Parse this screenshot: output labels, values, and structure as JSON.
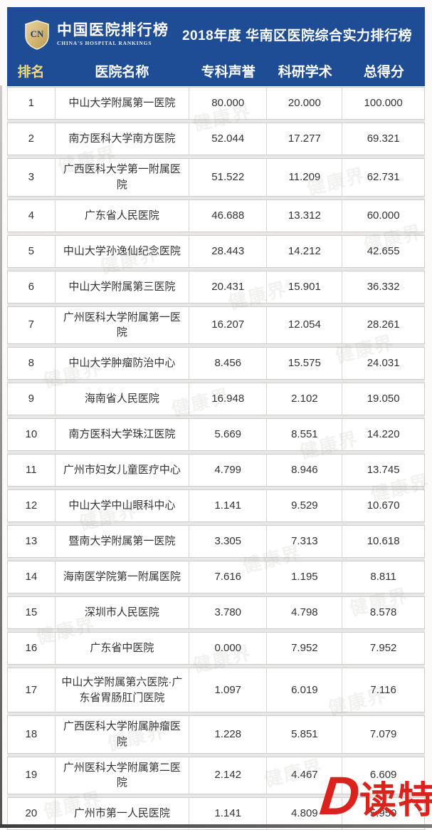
{
  "colors": {
    "banner_blue": "#1e4c95",
    "rank_header_gold": "#eeda7f",
    "dute_red": "#d9231c",
    "shield_gold": "#d4b878"
  },
  "header": {
    "logo": {
      "badge": "CN",
      "title": "中国医院排行榜",
      "subtitle": "CHINA'S HOSPITAL RANKINGS"
    },
    "title": "2018年度 华南区医院综合实力排行榜"
  },
  "chart_data": {
    "type": "table",
    "title": "2018年度 华南区医院综合实力排行榜",
    "columns": [
      "排名",
      "医院名称",
      "专科声誉",
      "科研学术",
      "总得分"
    ],
    "rows": [
      [
        "1",
        "中山大学附属第一医院",
        "80.000",
        "20.000",
        "100.000"
      ],
      [
        "2",
        "南方医科大学南方医院",
        "52.044",
        "17.277",
        "69.321"
      ],
      [
        "3",
        "广西医科大学第一附属医院",
        "51.522",
        "11.209",
        "62.731"
      ],
      [
        "4",
        "广东省人民医院",
        "46.688",
        "13.312",
        "60.000"
      ],
      [
        "5",
        "中山大学孙逸仙纪念医院",
        "28.443",
        "14.212",
        "42.655"
      ],
      [
        "6",
        "中山大学附属第三医院",
        "20.431",
        "15.901",
        "36.332"
      ],
      [
        "7",
        "广州医科大学附属第一医院",
        "16.207",
        "12.054",
        "28.261"
      ],
      [
        "8",
        "中山大学肿瘤防治中心",
        "8.456",
        "15.575",
        "24.031"
      ],
      [
        "9",
        "海南省人民医院",
        "16.948",
        "2.102",
        "19.050"
      ],
      [
        "10",
        "南方医科大学珠江医院",
        "5.669",
        "8.551",
        "14.220"
      ],
      [
        "11",
        "广州市妇女儿童医疗中心",
        "4.799",
        "8.946",
        "13.745"
      ],
      [
        "12",
        "中山大学中山眼科中心",
        "1.141",
        "9.529",
        "10.670"
      ],
      [
        "13",
        "暨南大学附属第一医院",
        "3.305",
        "7.313",
        "10.618"
      ],
      [
        "14",
        "海南医学院第一附属医院",
        "7.616",
        "1.195",
        "8.811"
      ],
      [
        "15",
        "深圳市人民医院",
        "3.780",
        "4.798",
        "8.578"
      ],
      [
        "16",
        "广东省中医院",
        "0.000",
        "7.952",
        "7.952"
      ],
      [
        "17",
        "中山大学附属第六医院·广东省胃肠肛门医院",
        "1.097",
        "6.019",
        "7.116"
      ],
      [
        "18",
        "广西医科大学附属肿瘤医院",
        "1.228",
        "5.851",
        "7.079"
      ],
      [
        "19",
        "广州医科大学附属第二医院",
        "2.142",
        "4.467",
        "6.609"
      ],
      [
        "20",
        "广州市第一人民医院",
        "1.141",
        "4.809",
        "5.950"
      ]
    ]
  },
  "watermark": {
    "text": "健康界"
  },
  "footer_logo": {
    "d": "D",
    "text": "读特"
  }
}
